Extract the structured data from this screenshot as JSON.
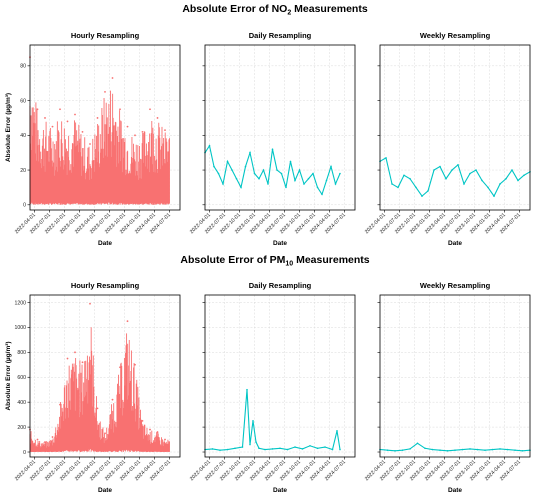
{
  "figure": {
    "rows": [
      {
        "title_main": "Absolute Error of NO",
        "title_sub": "2",
        "title_tail": " Measurements"
      },
      {
        "title_main": "Absolute Error of PM",
        "title_sub": "10",
        "title_tail": " Measurements"
      }
    ]
  },
  "chart_data": [
    {
      "type": "line",
      "row": 0,
      "col": 0,
      "title": "Hourly Resampling",
      "xlabel": "Date",
      "ylabel": "Absolute Error (µg/m³)",
      "color": "#f87171",
      "render": "dense",
      "ylim": [
        -3,
        92
      ],
      "yticks": [
        0,
        20,
        40,
        60,
        80
      ],
      "xticks": [
        "2022-04-01",
        "2022-07-01",
        "2022-10-01",
        "2023-01-01",
        "2023-04-01",
        "2023-07-01",
        "2023-10-01",
        "2024-01-01",
        "2024-04-01",
        "2024-07-01"
      ],
      "envelope": {
        "x": [
          0,
          0.05,
          0.1,
          0.15,
          0.2,
          0.25,
          0.3,
          0.35,
          0.4,
          0.45,
          0.5,
          0.55,
          0.6,
          0.65,
          0.7,
          0.75,
          0.8,
          0.85,
          0.9
        ],
        "y": [
          85,
          55,
          50,
          45,
          55,
          48,
          52,
          42,
          35,
          50,
          65,
          73,
          55,
          45,
          40,
          42,
          55,
          50,
          43
        ]
      }
    },
    {
      "type": "line",
      "row": 0,
      "col": 1,
      "title": "Daily Resampling",
      "xlabel": "Date",
      "ylabel": "",
      "color": "#00c5c5",
      "render": "line",
      "ylim": [
        -3,
        92
      ],
      "yticks": [
        0,
        20,
        40,
        60,
        80
      ],
      "xticks": [
        "2022-04-01",
        "2022-07-01",
        "2022-10-01",
        "2023-01-01",
        "2023-04-01",
        "2023-07-01",
        "2023-10-01",
        "2024-01-01",
        "2024-04-01",
        "2024-07-01"
      ],
      "x": [
        0,
        0.03,
        0.06,
        0.09,
        0.12,
        0.15,
        0.18,
        0.21,
        0.24,
        0.27,
        0.3,
        0.33,
        0.36,
        0.39,
        0.42,
        0.45,
        0.48,
        0.51,
        0.54,
        0.57,
        0.6,
        0.63,
        0.66,
        0.69,
        0.72,
        0.75,
        0.78,
        0.81,
        0.84,
        0.87,
        0.9
      ],
      "y": [
        30,
        34,
        22,
        18,
        12,
        25,
        20,
        15,
        10,
        22,
        30,
        18,
        15,
        20,
        12,
        32,
        20,
        18,
        10,
        25,
        14,
        20,
        12,
        15,
        18,
        10,
        6,
        14,
        22,
        12,
        18
      ]
    },
    {
      "type": "line",
      "row": 0,
      "col": 2,
      "title": "Weekly Resampling",
      "xlabel": "Date",
      "ylabel": "",
      "color": "#00c5c5",
      "render": "line",
      "ylim": [
        -3,
        92
      ],
      "yticks": [
        0,
        20,
        40,
        60,
        80
      ],
      "xticks": [
        "2022-04-01",
        "2022-07-01",
        "2022-10-01",
        "2023-01-01",
        "2023-04-01",
        "2023-07-01",
        "2023-10-01",
        "2024-01-01",
        "2024-04-01",
        "2024-07-01"
      ],
      "x": [
        0,
        0.04,
        0.08,
        0.12,
        0.16,
        0.2,
        0.24,
        0.28,
        0.32,
        0.36,
        0.4,
        0.44,
        0.48,
        0.52,
        0.56,
        0.6,
        0.64,
        0.68,
        0.72,
        0.76,
        0.8,
        0.84,
        0.88,
        0.92,
        0.96,
        1.0
      ],
      "y": [
        25,
        27,
        12,
        10,
        17,
        15,
        10,
        5,
        8,
        20,
        22,
        15,
        20,
        23,
        12,
        18,
        20,
        14,
        10,
        5,
        12,
        15,
        20,
        14,
        17,
        19
      ]
    },
    {
      "type": "line",
      "row": 1,
      "col": 0,
      "title": "Hourly Resampling",
      "xlabel": "Date",
      "ylabel": "Absolute Error (µg/m³)",
      "color": "#f87171",
      "render": "dense",
      "ylim": [
        -40,
        1260
      ],
      "yticks": [
        0,
        200,
        400,
        600,
        800,
        1000,
        1200
      ],
      "xticks": [
        "2022-04-01",
        "2022-07-01",
        "2022-10-01",
        "2023-01-01",
        "2023-04-01",
        "2023-07-01",
        "2023-10-01",
        "2024-01-01",
        "2024-04-01",
        "2024-07-01"
      ],
      "envelope": {
        "x": [
          0,
          0.05,
          0.1,
          0.15,
          0.2,
          0.25,
          0.3,
          0.35,
          0.4,
          0.45,
          0.5,
          0.55,
          0.6,
          0.65,
          0.7,
          0.75,
          0.8,
          0.85,
          0.9
        ],
        "y": [
          180,
          100,
          80,
          120,
          380,
          750,
          800,
          720,
          1190,
          350,
          150,
          420,
          680,
          1050,
          700,
          250,
          180,
          160,
          100
        ]
      }
    },
    {
      "type": "line",
      "row": 1,
      "col": 1,
      "title": "Daily Resampling",
      "xlabel": "Date",
      "ylabel": "",
      "color": "#00c5c5",
      "render": "line",
      "ylim": [
        -40,
        1260
      ],
      "yticks": [
        0,
        200,
        400,
        600,
        800,
        1000,
        1200
      ],
      "xticks": [
        "2022-04-01",
        "2022-07-01",
        "2022-10-01",
        "2023-01-01",
        "2023-04-01",
        "2023-07-01",
        "2023-10-01",
        "2024-01-01",
        "2024-04-01",
        "2024-07-01"
      ],
      "x": [
        0,
        0.05,
        0.1,
        0.15,
        0.2,
        0.25,
        0.28,
        0.3,
        0.32,
        0.34,
        0.36,
        0.4,
        0.45,
        0.5,
        0.55,
        0.6,
        0.65,
        0.7,
        0.75,
        0.8,
        0.85,
        0.88,
        0.9
      ],
      "y": [
        20,
        25,
        15,
        20,
        30,
        40,
        500,
        60,
        250,
        80,
        30,
        20,
        25,
        30,
        20,
        40,
        25,
        50,
        30,
        40,
        20,
        170,
        20
      ]
    },
    {
      "type": "line",
      "row": 1,
      "col": 2,
      "title": "Weekly Resampling",
      "xlabel": "Date",
      "ylabel": "",
      "color": "#00c5c5",
      "render": "line",
      "ylim": [
        -40,
        1260
      ],
      "yticks": [
        0,
        200,
        400,
        600,
        800,
        1000,
        1200
      ],
      "xticks": [
        "2022-04-01",
        "2022-07-01",
        "2022-10-01",
        "2023-01-01",
        "2023-04-01",
        "2023-07-01",
        "2023-10-01",
        "2024-01-01",
        "2024-04-01",
        "2024-07-01"
      ],
      "x": [
        0,
        0.05,
        0.1,
        0.15,
        0.2,
        0.25,
        0.3,
        0.35,
        0.4,
        0.45,
        0.5,
        0.55,
        0.6,
        0.65,
        0.7,
        0.75,
        0.8,
        0.85,
        0.9,
        0.95,
        1.0
      ],
      "y": [
        20,
        15,
        10,
        15,
        25,
        70,
        30,
        20,
        15,
        10,
        15,
        20,
        25,
        20,
        15,
        20,
        25,
        20,
        15,
        10,
        15
      ]
    }
  ]
}
